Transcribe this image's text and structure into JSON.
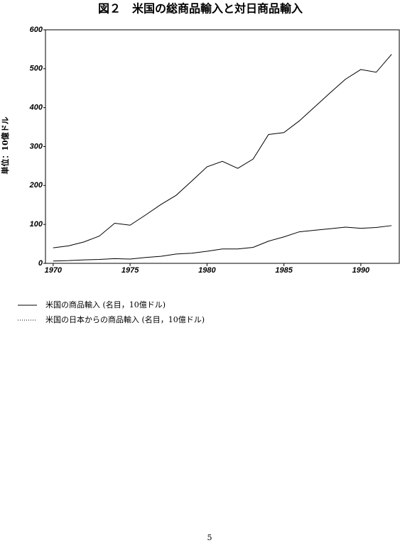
{
  "chart_data": {
    "type": "line",
    "title": "図２　米国の総商品輸入と対日商品輸入",
    "ylabel": "単位：10億ドル",
    "x": [
      1970,
      1971,
      1972,
      1973,
      1974,
      1975,
      1976,
      1977,
      1978,
      1979,
      1980,
      1981,
      1982,
      1983,
      1984,
      1985,
      1986,
      1987,
      1988,
      1989,
      1990,
      1991,
      1992
    ],
    "series": [
      {
        "name": "米国の商品輸入 (名目，10億ドル)",
        "color": "#000000",
        "dash": "none",
        "values": [
          40,
          45,
          55,
          70,
          103,
          98,
          124,
          151,
          175,
          211,
          248,
          262,
          244,
          268,
          331,
          336,
          366,
          402,
          438,
          473,
          498,
          491,
          537
        ]
      },
      {
        "name": "米国の日本からの商品輸入 (名目，10億ドル)",
        "color": "#000000",
        "dash": "1,2",
        "values": [
          6,
          7,
          9,
          10,
          12,
          11,
          15,
          18,
          24,
          26,
          31,
          37,
          37,
          41,
          57,
          68,
          81,
          85,
          89,
          93,
          90,
          92,
          97
        ]
      }
    ],
    "xlim": [
      1969.5,
      1992.5
    ],
    "xticks": [
      1970,
      1975,
      1980,
      1985,
      1990
    ],
    "ylim": [
      0,
      600
    ],
    "yticks": [
      0,
      100,
      200,
      300,
      400,
      500,
      600
    ],
    "grid": false
  },
  "page_number": "5"
}
